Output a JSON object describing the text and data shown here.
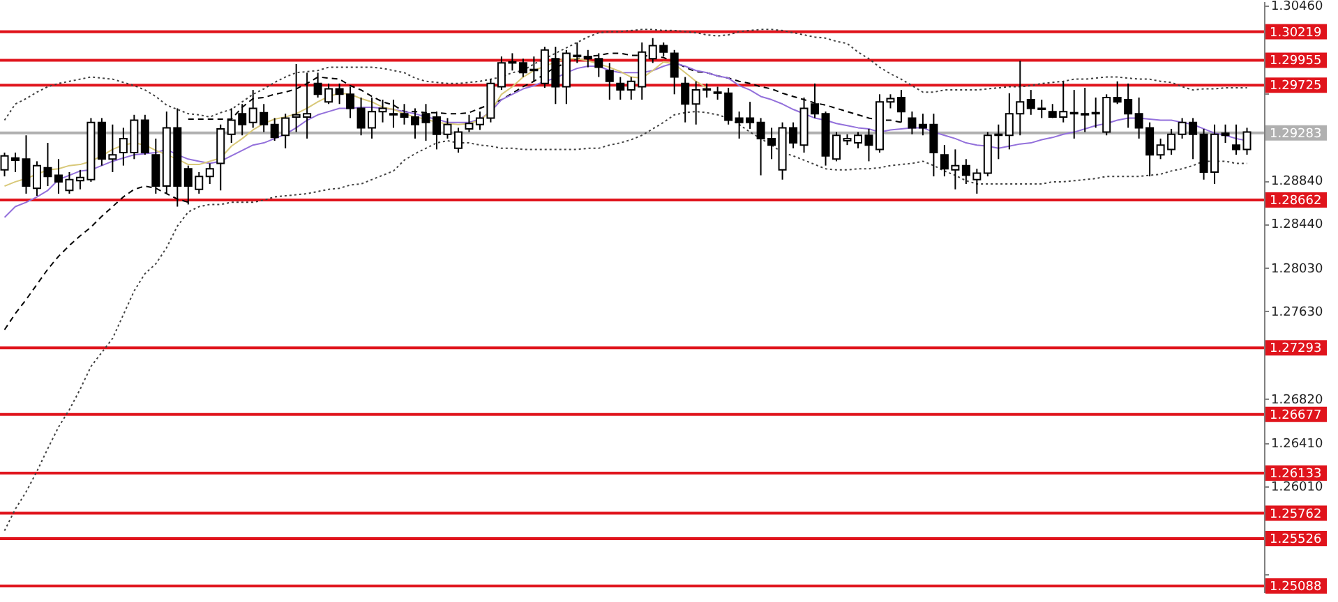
{
  "chart_data": {
    "type": "candlestick",
    "categories": [
      null,
      null,
      null,
      null,
      null,
      null,
      null,
      null,
      null,
      null,
      null,
      null,
      null,
      null,
      null,
      null,
      null,
      null,
      null,
      null,
      null,
      null,
      null,
      null,
      null,
      null,
      null,
      null,
      null,
      null,
      null,
      null,
      null,
      null,
      null,
      null,
      null,
      null,
      null,
      null,
      null,
      null,
      null,
      null,
      null,
      null,
      null,
      null,
      null,
      null,
      null,
      null,
      null,
      null,
      null,
      null,
      null,
      null,
      null,
      null,
      null,
      null,
      null,
      null,
      null,
      null,
      null,
      null,
      null,
      null,
      null,
      null,
      null,
      null,
      null,
      null,
      null,
      null,
      null,
      null,
      null,
      null,
      null,
      null,
      null,
      null,
      null,
      null,
      null,
      null,
      null,
      null,
      null,
      null,
      null,
      null,
      null,
      null,
      null,
      null,
      null,
      null,
      null,
      null,
      null,
      null,
      null,
      null,
      null,
      null,
      null,
      null,
      null,
      null,
      null,
      null
    ],
    "ohlc": [
      [
        1.2894,
        1.291,
        1.2888,
        1.2907
      ],
      [
        1.2905,
        1.291,
        1.2892,
        1.2903
      ],
      [
        1.2904,
        1.2926,
        1.2872,
        1.2879
      ],
      [
        1.2877,
        1.2902,
        1.287,
        1.2898
      ],
      [
        1.2896,
        1.2919,
        1.2879,
        1.2888
      ],
      [
        1.2889,
        1.2904,
        1.2872,
        1.2883
      ],
      [
        1.2875,
        1.2892,
        1.2872,
        1.2885
      ],
      [
        1.2884,
        1.2894,
        1.2876,
        1.2887
      ],
      [
        1.2885,
        1.2942,
        1.2883,
        1.2938
      ],
      [
        1.2938,
        1.2942,
        1.2898,
        1.2904
      ],
      [
        1.2904,
        1.2936,
        1.2892,
        1.2908
      ],
      [
        1.291,
        1.2933,
        1.2898,
        1.2923
      ],
      [
        1.291,
        1.2945,
        1.2904,
        1.294
      ],
      [
        1.294,
        1.2945,
        1.2908,
        1.291
      ],
      [
        1.2908,
        1.2923,
        1.2872,
        1.2879
      ],
      [
        1.2879,
        1.2948,
        1.2872,
        1.2933
      ],
      [
        1.2933,
        1.2951,
        1.286,
        1.2879
      ],
      [
        1.2895,
        1.2898,
        1.2862,
        1.2879
      ],
      [
        1.2876,
        1.2892,
        1.2872,
        1.2888
      ],
      [
        1.2888,
        1.29,
        1.2881,
        1.2895
      ],
      [
        1.29,
        1.2936,
        1.2875,
        1.2932
      ],
      [
        1.2927,
        1.2951,
        1.2919,
        1.294
      ],
      [
        1.2946,
        1.2955,
        1.2926,
        1.2936
      ],
      [
        1.2938,
        1.2968,
        1.2933,
        1.2951
      ],
      [
        1.2947,
        1.2955,
        1.2929,
        1.2936
      ],
      [
        1.2936,
        1.2942,
        1.2921,
        1.2924
      ],
      [
        1.2926,
        1.2946,
        1.2914,
        1.2942
      ],
      [
        1.2943,
        1.2992,
        1.2929,
        1.2945
      ],
      [
        1.2943,
        1.2984,
        1.2923,
        1.2946
      ],
      [
        1.2974,
        1.2984,
        1.2961,
        1.2964
      ],
      [
        1.2957,
        1.2974,
        1.2955,
        1.2969
      ],
      [
        1.2969,
        1.2974,
        1.2955,
        1.2964
      ],
      [
        1.2964,
        1.2971,
        1.2942,
        1.2951
      ],
      [
        1.2951,
        1.2961,
        1.2926,
        1.2933
      ],
      [
        1.2933,
        1.2961,
        1.2923,
        1.2948
      ],
      [
        1.2948,
        1.2959,
        1.2938,
        1.2951
      ],
      [
        1.2946,
        1.2959,
        1.2933,
        1.2945
      ],
      [
        1.2946,
        1.2955,
        1.2936,
        1.2943
      ],
      [
        1.2943,
        1.2951,
        1.2923,
        1.2936
      ],
      [
        1.2946,
        1.2955,
        1.2921,
        1.2938
      ],
      [
        1.2943,
        1.2948,
        1.2913,
        1.2927
      ],
      [
        1.2927,
        1.2942,
        1.2923,
        1.2936
      ],
      [
        1.2914,
        1.2933,
        1.291,
        1.2929
      ],
      [
        1.2932,
        1.2945,
        1.2929,
        1.2937
      ],
      [
        1.2936,
        1.2948,
        1.2931,
        1.2942
      ],
      [
        1.2942,
        1.2978,
        1.2938,
        1.2974
      ],
      [
        1.2971,
        1.2999,
        1.2968,
        1.2993
      ],
      [
        1.2993,
        1.3002,
        1.2986,
        1.2994
      ],
      [
        1.2993,
        1.2997,
        1.298,
        1.2984
      ],
      [
        1.2986,
        1.2999,
        1.2976,
        1.2987
      ],
      [
        1.2974,
        1.3008,
        1.297,
        1.3005
      ],
      [
        1.2997,
        1.3008,
        1.2955,
        1.2971
      ],
      [
        1.2971,
        1.3005,
        1.2955,
        1.3002
      ],
      [
        1.2999,
        1.3012,
        1.2993,
        1.3
      ],
      [
        1.2999,
        1.3005,
        1.2989,
        1.2997
      ],
      [
        1.2997,
        1.3002,
        1.298,
        1.2989
      ],
      [
        1.2986,
        1.2993,
        1.2959,
        1.2976
      ],
      [
        1.2974,
        1.298,
        1.2959,
        1.2968
      ],
      [
        1.2968,
        1.298,
        1.2959,
        1.2976
      ],
      [
        1.2971,
        1.3012,
        1.2959,
        1.3003
      ],
      [
        1.2997,
        1.3016,
        1.2993,
        1.3009
      ],
      [
        1.3009,
        1.3012,
        1.2999,
        1.3003
      ],
      [
        1.3002,
        1.3005,
        1.2964,
        1.298
      ],
      [
        1.2974,
        1.298,
        1.2938,
        1.2955
      ],
      [
        1.2955,
        1.2976,
        1.2936,
        1.2968
      ],
      [
        1.2968,
        1.2974,
        1.2961,
        1.2969
      ],
      [
        1.2965,
        1.2971,
        1.2959,
        1.2966
      ],
      [
        1.2965,
        1.297,
        1.2936,
        1.294
      ],
      [
        1.2942,
        1.2948,
        1.2923,
        1.2938
      ],
      [
        1.2942,
        1.2957,
        1.2932,
        1.2938
      ],
      [
        1.2938,
        1.2942,
        1.2889,
        1.2923
      ],
      [
        1.2923,
        1.2933,
        1.2904,
        1.2917
      ],
      [
        1.2894,
        1.2938,
        1.2885,
        1.2933
      ],
      [
        1.2933,
        1.2938,
        1.2914,
        1.2919
      ],
      [
        1.2917,
        1.2961,
        1.291,
        1.2951
      ],
      [
        1.2955,
        1.2974,
        1.2942,
        1.2946
      ],
      [
        1.2946,
        1.2948,
        1.2898,
        1.2907
      ],
      [
        1.2904,
        1.2929,
        1.2902,
        1.2926
      ],
      [
        1.2921,
        1.2927,
        1.2917,
        1.2923
      ],
      [
        1.2919,
        1.2929,
        1.2914,
        1.2926
      ],
      [
        1.2926,
        1.2932,
        1.2902,
        1.2917
      ],
      [
        1.2913,
        1.2964,
        1.291,
        1.2957
      ],
      [
        1.2957,
        1.2964,
        1.2951,
        1.296
      ],
      [
        1.2961,
        1.2968,
        1.2938,
        1.2948
      ],
      [
        1.2942,
        1.2948,
        1.2927,
        1.2933
      ],
      [
        1.2936,
        1.2946,
        1.2926,
        1.2933
      ],
      [
        1.2936,
        1.2946,
        1.2888,
        1.291
      ],
      [
        1.2908,
        1.2917,
        1.2888,
        1.2895
      ],
      [
        1.2894,
        1.2913,
        1.2876,
        1.2898
      ],
      [
        1.2898,
        1.2904,
        1.2881,
        1.2889
      ],
      [
        1.2885,
        1.2895,
        1.2872,
        1.2891
      ],
      [
        1.2891,
        1.2929,
        1.2888,
        1.2926
      ],
      [
        1.2926,
        1.2936,
        1.2904,
        1.2927
      ],
      [
        1.2926,
        1.2965,
        1.2913,
        1.2946
      ],
      [
        1.2946,
        1.2995,
        1.2926,
        1.2957
      ],
      [
        1.2959,
        1.2968,
        1.2945,
        1.2951
      ],
      [
        1.2951,
        1.2959,
        1.2942,
        1.295
      ],
      [
        1.2948,
        1.2955,
        1.2942,
        1.2943
      ],
      [
        1.2943,
        1.2976,
        1.2938,
        1.2948
      ],
      [
        1.2947,
        1.2968,
        1.2923,
        1.2946
      ],
      [
        1.2946,
        1.297,
        1.2929,
        1.2945
      ],
      [
        1.2946,
        1.2961,
        1.2933,
        1.2947
      ],
      [
        1.2929,
        1.2964,
        1.2926,
        1.2961
      ],
      [
        1.2961,
        1.2976,
        1.2955,
        1.2957
      ],
      [
        1.2959,
        1.2974,
        1.2933,
        1.2946
      ],
      [
        1.2946,
        1.2961,
        1.2923,
        1.2933
      ],
      [
        1.2933,
        1.2938,
        1.2888,
        1.2908
      ],
      [
        1.2908,
        1.2923,
        1.2904,
        1.2917
      ],
      [
        1.2913,
        1.2932,
        1.2908,
        1.2927
      ],
      [
        1.2927,
        1.2942,
        1.2923,
        1.2938
      ],
      [
        1.2938,
        1.2942,
        1.2904,
        1.2927
      ],
      [
        1.2927,
        1.2932,
        1.2885,
        1.2892
      ],
      [
        1.2892,
        1.2936,
        1.2881,
        1.2927
      ],
      [
        1.2928,
        1.2936,
        1.2919,
        1.2926
      ],
      [
        1.2917,
        1.2936,
        1.2908,
        1.2913
      ],
      [
        1.2913,
        1.2933,
        1.2908,
        1.2929
      ]
    ],
    "series": [
      {
        "type": "line",
        "color": "#404040",
        "line_style": "dotted",
        "values": [
          1.294,
          1.2955,
          1.296,
          1.2966,
          1.2971,
          1.2974,
          1.2976,
          1.2978,
          1.298,
          1.2979,
          1.2978,
          1.2975,
          1.2972,
          1.2968,
          1.2962,
          1.2954,
          1.295,
          1.2946,
          1.2945,
          1.2943,
          1.2947,
          1.295,
          1.2957,
          1.2964,
          1.2969,
          1.2975,
          1.298,
          1.2984,
          1.2985,
          1.2986,
          1.2989,
          1.2989,
          1.2989,
          1.2989,
          1.2989,
          1.2988,
          1.2986,
          1.2984,
          1.2979,
          1.2976,
          1.2975,
          1.2974,
          1.2974,
          1.2975,
          1.2976,
          1.2978,
          1.298,
          1.2984,
          1.2986,
          1.2992,
          1.2997,
          1.3002,
          1.3007,
          1.3012,
          1.3017,
          1.3021,
          1.3022,
          1.3022,
          1.3023,
          1.3024,
          1.3024,
          1.3023,
          1.3023,
          1.3022,
          1.3021,
          1.3019,
          1.3018,
          1.3019,
          1.3022,
          1.3023,
          1.3024,
          1.3024,
          1.3023,
          1.3021,
          1.3019,
          1.3017,
          1.3016,
          1.3013,
          1.3011,
          1.3003,
          1.2997,
          1.2989,
          1.2983,
          1.2978,
          1.2972,
          1.2966,
          1.2966,
          1.2968,
          1.2968,
          1.2968,
          1.2968,
          1.2969,
          1.297,
          1.2971,
          1.2971,
          1.2972,
          1.2974,
          1.2975,
          1.2976,
          1.2978,
          1.2978,
          1.2979,
          1.298,
          1.298,
          1.2979,
          1.2978,
          1.2978,
          1.2976,
          1.2975,
          1.2971,
          1.2968,
          1.2969,
          1.2969,
          1.297,
          1.297,
          1.297
        ]
      },
      {
        "type": "line",
        "color": "#404040",
        "line_style": "dotted",
        "values": [
          1.256,
          1.258,
          1.2596,
          1.2615,
          1.2636,
          1.2656,
          1.2672,
          1.2691,
          1.2712,
          1.2725,
          1.2738,
          1.276,
          1.2782,
          1.2798,
          1.2807,
          1.2822,
          1.2842,
          1.2855,
          1.286,
          1.2862,
          1.2862,
          1.2864,
          1.2864,
          1.2864,
          1.2866,
          1.2869,
          1.287,
          1.2871,
          1.2872,
          1.2874,
          1.2876,
          1.2877,
          1.288,
          1.2881,
          1.2885,
          1.2889,
          1.2893,
          1.2903,
          1.2909,
          1.2914,
          1.2919,
          1.2921,
          1.2919,
          1.2919,
          1.2917,
          1.2916,
          1.2914,
          1.2914,
          1.2913,
          1.2913,
          1.2913,
          1.2913,
          1.2913,
          1.2913,
          1.2914,
          1.2914,
          1.2917,
          1.2919,
          1.2922,
          1.2926,
          1.2932,
          1.2938,
          1.2945,
          1.2947,
          1.2948,
          1.2947,
          1.2945,
          1.2942,
          1.2936,
          1.2929,
          1.2923,
          1.2917,
          1.291,
          1.2907,
          1.2903,
          1.2899,
          1.2895,
          1.2894,
          1.2894,
          1.2895,
          1.2895,
          1.2896,
          1.2898,
          1.2899,
          1.29,
          1.2902,
          1.2898,
          1.2893,
          1.2889,
          1.2884,
          1.2881,
          1.2881,
          1.2881,
          1.2881,
          1.2881,
          1.2881,
          1.2881,
          1.2883,
          1.2883,
          1.2884,
          1.2885,
          1.2886,
          1.2888,
          1.2888,
          1.2888,
          1.2888,
          1.2889,
          1.289,
          1.2893,
          1.2895,
          1.2898,
          1.2902,
          1.2902,
          1.2902,
          1.29,
          1.29
        ]
      },
      {
        "type": "line",
        "color": "#000000",
        "line_style": "dashed",
        "values": [
          null,
          null,
          null,
          null,
          null,
          null,
          null,
          null,
          null,
          null,
          null,
          null,
          null,
          null,
          null,
          null,
          null,
          1.2941,
          1.2941,
          1.2941,
          1.2941,
          1.2941,
          1.2952,
          1.296,
          1.2961,
          1.2964,
          1.2966,
          1.2969,
          1.2974,
          1.298,
          1.2979,
          1.2978,
          1.2972,
          1.2968,
          1.2962,
          1.2957,
          1.2954,
          1.2948,
          1.2948,
          1.2947,
          1.2947,
          1.2946,
          1.2946,
          1.2947,
          1.2951,
          1.2955,
          1.2959,
          1.2965,
          1.2971,
          1.2976,
          1.2983,
          1.2989,
          1.2993,
          1.2997,
          1.2999,
          1.3,
          1.3002,
          1.3002,
          1.3,
          1.3,
          1.2999,
          1.2998,
          1.2994,
          1.2989,
          1.2985,
          1.2984,
          1.2981,
          1.2979,
          1.2976,
          1.2974,
          1.2971,
          1.2969,
          1.2965,
          1.2962,
          1.2959,
          1.2956,
          1.2954,
          1.2951,
          1.2948,
          1.2945,
          1.2942,
          1.294,
          1.294,
          1.2938,
          null,
          null,
          null,
          null,
          null,
          null,
          null,
          null,
          null,
          null,
          null,
          null,
          null,
          null,
          null,
          null,
          null,
          null,
          null,
          null,
          null,
          null,
          null,
          null,
          null,
          null,
          null,
          null,
          null,
          null,
          null,
          null
        ]
      },
      {
        "type": "line",
        "color": "#000000",
        "line_style": "dashed",
        "values": [
          1.2746,
          1.2761,
          1.2774,
          1.2788,
          1.2802,
          1.2814,
          1.2824,
          1.2833,
          1.2841,
          1.2851,
          1.286,
          1.2869,
          1.2876,
          1.2879,
          1.2877,
          1.2872,
          1.2867,
          1.2864,
          null,
          null,
          null,
          null,
          null,
          null,
          null,
          null,
          null,
          null,
          null,
          null,
          null,
          null,
          null,
          null,
          null,
          null,
          null,
          null,
          null,
          null,
          null,
          null,
          null,
          null,
          null,
          null,
          null,
          null,
          null,
          null,
          null,
          null,
          null,
          null,
          null,
          null,
          null,
          null,
          null,
          null,
          null,
          null,
          null,
          null,
          null,
          null,
          null,
          null,
          null,
          null,
          null,
          null,
          null,
          null,
          null,
          null,
          null,
          null,
          null,
          null,
          null,
          null,
          null,
          null,
          null,
          null,
          null,
          null,
          null,
          null,
          null,
          null,
          null,
          null,
          null,
          null,
          null,
          null,
          null,
          null,
          null,
          null,
          null,
          null,
          null,
          null,
          null,
          null,
          null,
          null,
          null,
          null,
          null,
          null,
          null,
          null
        ]
      },
      {
        "type": "line",
        "color": "#9370db",
        "line_style": "solid",
        "values": [
          1.285,
          1.286,
          1.2864,
          1.2869,
          1.2875,
          1.2885,
          1.2889,
          1.2893,
          1.2894,
          1.2898,
          1.2902,
          1.2905,
          1.2908,
          1.2909,
          1.291,
          1.2913,
          1.2908,
          1.2904,
          1.2902,
          1.29,
          1.2902,
          1.2907,
          1.2912,
          1.2917,
          1.2919,
          1.2923,
          1.2927,
          1.2933,
          1.294,
          1.2945,
          1.2948,
          1.2951,
          1.2951,
          1.2952,
          1.2952,
          1.2951,
          1.295,
          1.2948,
          1.2946,
          1.2943,
          1.2941,
          1.2938,
          1.2938,
          1.2938,
          1.2941,
          1.2948,
          1.2959,
          1.2964,
          1.2969,
          1.2972,
          1.2976,
          1.2979,
          1.2984,
          1.2988,
          1.299,
          1.299,
          1.2986,
          1.2984,
          1.2984,
          1.2984,
          1.2986,
          1.299,
          1.2993,
          1.299,
          1.2986,
          1.2984,
          1.2981,
          1.2979,
          1.2972,
          1.2968,
          1.2962,
          1.2959,
          1.2955,
          1.295,
          1.2946,
          1.2942,
          1.294,
          1.2937,
          1.2935,
          1.2933,
          1.2932,
          1.2929,
          1.2931,
          1.2932,
          1.2933,
          1.2933,
          1.2929,
          1.2926,
          1.2923,
          1.2919,
          1.2917,
          1.2916,
          1.2914,
          1.2916,
          1.2918,
          1.2919,
          1.2922,
          1.2924,
          1.2927,
          1.2929,
          1.2932,
          1.2935,
          1.2937,
          1.294,
          1.2942,
          1.2942,
          1.2941,
          1.294,
          1.294,
          1.2938,
          1.2936,
          1.2932,
          1.2928,
          1.2926,
          1.2923,
          1.2921
        ]
      },
      {
        "type": "line",
        "color": "#d8c878",
        "line_style": "solid",
        "values": [
          1.2879,
          1.2883,
          1.2886,
          1.289,
          1.2894,
          1.2895,
          1.2898,
          1.2899,
          1.2902,
          1.2907,
          1.2913,
          1.2917,
          1.2919,
          1.2917,
          1.2912,
          1.2908,
          1.2904,
          1.2899,
          1.2899,
          1.2902,
          1.2905,
          1.2916,
          1.2923,
          1.2931,
          1.2937,
          1.2941,
          1.2943,
          1.2946,
          1.2951,
          1.2957,
          1.2962,
          1.2965,
          1.2964,
          1.296,
          1.2957,
          1.2952,
          1.295,
          1.2946,
          1.2943,
          1.2941,
          1.2938,
          1.2937,
          1.2936,
          1.2937,
          1.294,
          1.2948,
          1.2964,
          1.2971,
          1.298,
          1.2986,
          1.299,
          1.2994,
          1.2997,
          1.2997,
          1.2995,
          1.2992,
          1.2989,
          1.2985,
          1.298,
          1.2979,
          1.2986,
          1.2994,
          1.2992,
          1.2984,
          1.2976,
          1.297,
          null,
          null,
          null,
          null,
          null,
          null,
          null,
          null,
          null,
          null,
          null,
          null,
          null,
          null,
          null,
          null,
          null,
          null,
          null,
          null,
          null,
          null,
          null,
          null,
          null,
          null,
          null,
          null,
          null,
          null,
          null,
          null,
          null,
          null,
          null,
          null,
          null,
          null,
          null,
          null,
          null,
          null,
          null,
          null,
          null,
          null,
          null,
          null,
          null,
          null
        ]
      }
    ],
    "ylim": [
      1.2503,
      1.305
    ],
    "yticks": [
      {
        "value": 1.3046,
        "label": "1.30460"
      },
      {
        "value": 1.2965,
        "label": null
      },
      {
        "value": 1.2884,
        "label": "1.28840"
      },
      {
        "value": 1.2844,
        "label": "1.28440"
      },
      {
        "value": 1.2803,
        "label": "1.28030"
      },
      {
        "value": 1.2763,
        "label": "1.27630"
      },
      {
        "value": 1.2682,
        "label": "1.26820"
      },
      {
        "value": 1.2641,
        "label": "1.26410"
      },
      {
        "value": 1.2601,
        "label": "1.26010"
      },
      {
        "value": 1.252,
        "label": null
      }
    ],
    "tick_labels": "y",
    "ref_lines": [
      {
        "axis": "y",
        "value": 1.29283,
        "label": "1.29283",
        "color": "#b0b0b0"
      },
      {
        "axis": "y",
        "value": 1.30219,
        "label": "1.30219",
        "color": "#e0141c"
      },
      {
        "axis": "y",
        "value": 1.29955,
        "label": "1.29955",
        "color": "#e0141c"
      },
      {
        "axis": "y",
        "value": 1.29725,
        "label": "1.29725",
        "color": "#e0141c"
      },
      {
        "axis": "y",
        "value": 1.28662,
        "label": "1.28662",
        "color": "#e0141c"
      },
      {
        "axis": "y",
        "value": 1.27293,
        "label": "1.27293",
        "color": "#e0141c"
      },
      {
        "axis": "y",
        "value": 1.26677,
        "label": "1.26677",
        "color": "#e0141c"
      },
      {
        "axis": "y",
        "value": 1.26133,
        "label": "1.26133",
        "color": "#e0141c"
      },
      {
        "axis": "y",
        "value": 1.25762,
        "label": "1.25762",
        "color": "#e0141c"
      },
      {
        "axis": "y",
        "value": 1.25526,
        "label": "1.25526",
        "color": "#e0141c"
      },
      {
        "axis": "y",
        "value": 1.25088,
        "label": "1.25088",
        "color": "#e0141c"
      }
    ]
  }
}
